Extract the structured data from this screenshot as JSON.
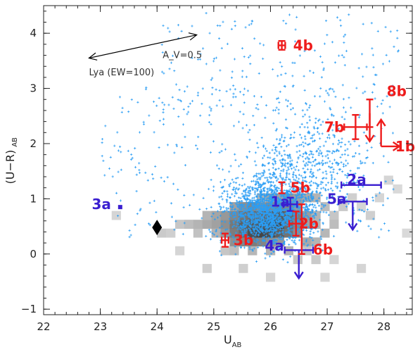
{
  "chart_data": {
    "type": "scatter",
    "title": "",
    "xlabel": {
      "main": "U",
      "sub": "AB"
    },
    "ylabel": {
      "main": "(U−R)",
      "sub": "AB"
    },
    "xlim": [
      22,
      28.5
    ],
    "ylim": [
      -1.1,
      4.5
    ],
    "xticks": [
      22,
      23,
      24,
      25,
      26,
      27,
      28
    ],
    "yticks": [
      -1,
      0,
      1,
      2,
      3,
      4
    ],
    "grid": false,
    "colors": {
      "background_points": "#2a9df4",
      "type_a": "#3a1ed0",
      "type_b": "#ee1c1c",
      "diamond": "#000000",
      "vector": "#000000"
    },
    "reddening_vector": {
      "label": "A_V=0.5",
      "from": [
        22.8,
        3.55
      ],
      "to": [
        24.7,
        3.97
      ]
    },
    "lya_marker": {
      "label": "Lya (EW=100)",
      "x": 22.8,
      "y": 3.3
    },
    "reference_diamond": {
      "x": 24.0,
      "y": 0.48
    },
    "density_grid": {
      "x0": 23.6,
      "y0": -0.7,
      "dx": 0.16,
      "dy": 0.16,
      "cells": [
        [
          24.0,
          0.3,
          0.18
        ],
        [
          24.16,
          0.3,
          0.15
        ],
        [
          24.32,
          0.46,
          0.2
        ],
        [
          24.48,
          0.46,
          0.25
        ],
        [
          24.64,
          0.3,
          0.22
        ],
        [
          24.64,
          0.46,
          0.3
        ],
        [
          24.8,
          0.46,
          0.35
        ],
        [
          24.8,
          0.62,
          0.3
        ],
        [
          24.96,
          0.46,
          0.4
        ],
        [
          24.96,
          0.62,
          0.38
        ],
        [
          24.96,
          0.3,
          0.3
        ],
        [
          25.12,
          0.3,
          0.45
        ],
        [
          25.12,
          0.46,
          0.5
        ],
        [
          25.12,
          0.62,
          0.45
        ],
        [
          25.28,
          0.14,
          0.5
        ],
        [
          25.28,
          0.3,
          0.6
        ],
        [
          25.28,
          0.46,
          0.62
        ],
        [
          25.28,
          0.62,
          0.55
        ],
        [
          25.28,
          0.78,
          0.4
        ],
        [
          25.44,
          0.14,
          0.55
        ],
        [
          25.44,
          0.3,
          0.7
        ],
        [
          25.44,
          0.46,
          0.75
        ],
        [
          25.44,
          0.62,
          0.65
        ],
        [
          25.44,
          0.78,
          0.5
        ],
        [
          25.6,
          0.14,
          0.6
        ],
        [
          25.6,
          0.3,
          0.85
        ],
        [
          25.6,
          0.46,
          0.8
        ],
        [
          25.6,
          0.62,
          0.7
        ],
        [
          25.6,
          0.78,
          0.55
        ],
        [
          25.76,
          0.14,
          0.55
        ],
        [
          25.76,
          0.3,
          0.9
        ],
        [
          25.76,
          0.46,
          0.85
        ],
        [
          25.76,
          0.62,
          0.72
        ],
        [
          25.76,
          0.78,
          0.5
        ],
        [
          25.92,
          0.14,
          0.5
        ],
        [
          25.92,
          0.3,
          0.85
        ],
        [
          25.92,
          0.46,
          0.9
        ],
        [
          25.92,
          0.62,
          0.78
        ],
        [
          25.92,
          0.78,
          0.55
        ],
        [
          26.08,
          0.14,
          0.45
        ],
        [
          26.08,
          0.3,
          0.75
        ],
        [
          26.08,
          0.46,
          0.88
        ],
        [
          26.08,
          0.62,
          0.8
        ],
        [
          26.08,
          0.78,
          0.6
        ],
        [
          26.24,
          0.3,
          0.65
        ],
        [
          26.24,
          0.46,
          0.7
        ],
        [
          26.24,
          0.62,
          0.72
        ],
        [
          26.24,
          0.78,
          0.55
        ],
        [
          26.4,
          0.3,
          0.5
        ],
        [
          26.4,
          0.46,
          0.55
        ],
        [
          26.4,
          0.62,
          0.6
        ],
        [
          26.4,
          0.78,
          0.45
        ],
        [
          26.56,
          0.46,
          0.4
        ],
        [
          26.56,
          0.62,
          0.42
        ],
        [
          26.72,
          0.46,
          0.3
        ],
        [
          26.72,
          0.62,
          0.3
        ],
        [
          26.88,
          0.78,
          0.25
        ],
        [
          27.04,
          0.62,
          0.2
        ],
        [
          27.2,
          0.78,
          0.18
        ],
        [
          27.36,
          0.94,
          0.15
        ],
        [
          27.52,
          0.78,
          0.12
        ],
        [
          27.68,
          0.62,
          0.15
        ],
        [
          28.0,
          1.26,
          0.12
        ],
        [
          28.16,
          1.1,
          0.1
        ],
        [
          26.56,
          0.14,
          0.35
        ],
        [
          26.72,
          0.14,
          0.3
        ],
        [
          26.88,
          0.3,
          0.28
        ],
        [
          27.04,
          0.46,
          0.25
        ],
        [
          26.56,
          -0.02,
          0.2
        ],
        [
          26.72,
          -0.18,
          0.18
        ],
        [
          27.04,
          -0.18,
          0.12
        ],
        [
          25.12,
          -0.02,
          0.2
        ],
        [
          25.28,
          -0.02,
          0.25
        ],
        [
          25.6,
          -0.02,
          0.28
        ],
        [
          25.92,
          -0.02,
          0.3
        ],
        [
          26.24,
          -0.02,
          0.3
        ],
        [
          26.4,
          -0.18,
          0.2
        ],
        [
          24.8,
          -0.34,
          0.15
        ],
        [
          25.44,
          -0.34,
          0.15
        ],
        [
          25.92,
          -0.5,
          0.12
        ],
        [
          26.88,
          -0.5,
          0.12
        ],
        [
          27.52,
          -0.34,
          0.12
        ],
        [
          23.2,
          0.62,
          0.12
        ],
        [
          24.32,
          -0.02,
          0.12
        ],
        [
          28.32,
          0.3,
          0.1
        ],
        [
          27.84,
          0.94,
          0.12
        ],
        [
          26.72,
          0.94,
          0.3
        ],
        [
          26.56,
          0.94,
          0.35
        ],
        [
          26.4,
          0.94,
          0.4
        ],
        [
          26.24,
          0.94,
          0.45
        ],
        [
          26.08,
          0.94,
          0.4
        ],
        [
          25.92,
          0.94,
          0.38
        ],
        [
          25.76,
          0.94,
          0.3
        ]
      ]
    },
    "background_points": {
      "count": 2600,
      "seed": 7
    },
    "sources": [
      {
        "label": "1a",
        "type": "a",
        "x": 26.35,
        "y": 0.9,
        "label_x": 26.0,
        "label_y": 0.95,
        "xerr": 0.12,
        "yerr": 0.12,
        "limit": null
      },
      {
        "label": "2a",
        "type": "a",
        "x": 27.6,
        "y": 1.25,
        "label_x": 27.35,
        "label_y": 1.35,
        "xerr": 0.35,
        "yerr": 0.0,
        "limit": null
      },
      {
        "label": "3a",
        "type": "a",
        "x": 23.35,
        "y": 0.85,
        "label_x": 22.85,
        "label_y": 0.9,
        "xerr": 0.0,
        "yerr": 0.0,
        "limit": null
      },
      {
        "label": "4a",
        "type": "a",
        "x": 26.5,
        "y": 0.07,
        "label_x": 25.9,
        "label_y": 0.15,
        "xerr": 0.25,
        "yerr": 0.0,
        "limit": "down"
      },
      {
        "label": "5a",
        "type": "a",
        "x": 27.45,
        "y": 0.95,
        "label_x": 27.0,
        "label_y": 1.0,
        "xerr": 0.25,
        "yerr": 0.0,
        "limit": "down"
      },
      {
        "label": "1b",
        "type": "b",
        "x": 27.95,
        "y": 1.95,
        "label_x": 28.2,
        "label_y": 1.95,
        "xerr": 0.0,
        "yerr": 0.0,
        "limit": "right-up"
      },
      {
        "label": "2b",
        "type": "b",
        "x": 26.45,
        "y": 0.55,
        "label_x": 26.5,
        "label_y": 0.55,
        "xerr": 0.12,
        "yerr": 0.22,
        "limit": null
      },
      {
        "label": "3b",
        "type": "b",
        "x": 25.2,
        "y": 0.25,
        "label_x": 25.35,
        "label_y": 0.25,
        "xerr": 0.06,
        "yerr": 0.12,
        "limit": null
      },
      {
        "label": "4b",
        "type": "b",
        "x": 26.2,
        "y": 3.78,
        "label_x": 26.4,
        "label_y": 3.78,
        "xerr": 0.06,
        "yerr": 0.08,
        "limit": null
      },
      {
        "label": "5b",
        "type": "b",
        "x": 26.2,
        "y": 1.2,
        "label_x": 26.35,
        "label_y": 1.2,
        "xerr": 0.0,
        "yerr": 0.1,
        "limit": null
      },
      {
        "label": "6b",
        "type": "b",
        "x": 26.55,
        "y": 0.45,
        "label_x": 26.75,
        "label_y": 0.08,
        "xerr": 0.0,
        "yerr": 0.45,
        "limit": null
      },
      {
        "label": "7b",
        "type": "b",
        "x": 27.5,
        "y": 2.3,
        "label_x": 26.95,
        "label_y": 2.3,
        "xerr": 0.2,
        "yerr": 0.22,
        "limit": null
      },
      {
        "label": "8b",
        "type": "b",
        "x": 27.75,
        "y": 2.55,
        "label_x": 28.05,
        "label_y": 2.95,
        "xerr": 0.0,
        "yerr": 0.25,
        "limit": "down"
      }
    ]
  }
}
